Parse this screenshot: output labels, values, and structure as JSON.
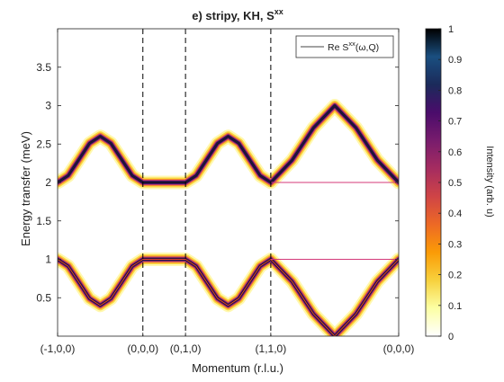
{
  "chart_data": {
    "type": "line",
    "title": "e) stripy, KH, S",
    "title_superscript": "xx",
    "xlabel": "Momentum (r.l.u.)",
    "ylabel": "Energy transfer (meV)",
    "xlim": [
      0,
      4
    ],
    "ylim": [
      0,
      4
    ],
    "x_ticks": [
      0,
      1,
      1.5,
      2.5,
      4
    ],
    "x_tick_labels": [
      "(-1,0,0)",
      "(0,0,0)",
      "(0,1,0)",
      "(1,1,0)",
      "(0,0,0)"
    ],
    "y_ticks": [
      0.5,
      1,
      1.5,
      2,
      2.5,
      3,
      3.5
    ],
    "y_tick_labels": [
      "0.5",
      "1",
      "1.5",
      "2",
      "2.5",
      "3",
      "3.5"
    ],
    "dashed_vlines": [
      1,
      1.5,
      2.5
    ],
    "grid": false,
    "legend": {
      "position": "top-right",
      "entries": [
        {
          "label": "Re S",
          "superscript": "xx",
          "suffix": "(ω,Q)"
        }
      ]
    },
    "colorbar": {
      "label": "Intensity (arb. u)",
      "range": [
        0,
        1
      ],
      "ticks": [
        0,
        0.1,
        0.2,
        0.3,
        0.4,
        0.5,
        0.6,
        0.7,
        0.8,
        0.9,
        1
      ],
      "tick_labels": [
        "0",
        "0.1",
        "0.2",
        "0.3",
        "0.4",
        "0.5",
        "0.6",
        "0.7",
        "0.8",
        "0.9",
        "1"
      ],
      "colormap": [
        "#ffffff",
        "#fcffa4",
        "#f7d13d",
        "#fb9b06",
        "#ed6925",
        "#cf4446",
        "#a52c60",
        "#781c6d",
        "#4a0c6b",
        "#1b2a5a",
        "#1a4f80",
        "#000000"
      ]
    },
    "series": [
      {
        "name": "upper branch",
        "x": [
          0,
          0.125,
          0.25,
          0.375,
          0.5,
          0.625,
          0.75,
          0.875,
          1,
          1.25,
          1.5,
          1.625,
          1.75,
          1.875,
          2,
          2.125,
          2.25,
          2.375,
          2.5,
          2.75,
          3,
          3.25,
          3.5,
          3.75,
          4
        ],
        "y": [
          2.0,
          2.09,
          2.3,
          2.51,
          2.6,
          2.51,
          2.3,
          2.09,
          2.0,
          2.0,
          2.0,
          2.09,
          2.3,
          2.51,
          2.6,
          2.51,
          2.3,
          2.09,
          2.0,
          2.29,
          2.71,
          3.0,
          2.71,
          2.29,
          2.0
        ]
      },
      {
        "name": "flat upper",
        "x": [
          2.5,
          4
        ],
        "y": [
          2.0,
          2.0
        ]
      },
      {
        "name": "lower branch",
        "x": [
          0,
          0.125,
          0.25,
          0.375,
          0.5,
          0.625,
          0.75,
          0.875,
          1,
          1.25,
          1.5,
          1.625,
          1.75,
          1.875,
          2,
          2.125,
          2.25,
          2.375,
          2.5,
          2.75,
          3,
          3.25,
          3.5,
          3.75,
          4
        ],
        "y": [
          1.0,
          0.91,
          0.7,
          0.49,
          0.4,
          0.49,
          0.7,
          0.91,
          1.0,
          1.0,
          1.0,
          0.91,
          0.7,
          0.49,
          0.4,
          0.49,
          0.7,
          0.91,
          1.0,
          0.71,
          0.29,
          0.0,
          0.29,
          0.71,
          1.0
        ]
      },
      {
        "name": "flat lower",
        "x": [
          2.5,
          4
        ],
        "y": [
          1.0,
          1.0
        ]
      }
    ]
  }
}
